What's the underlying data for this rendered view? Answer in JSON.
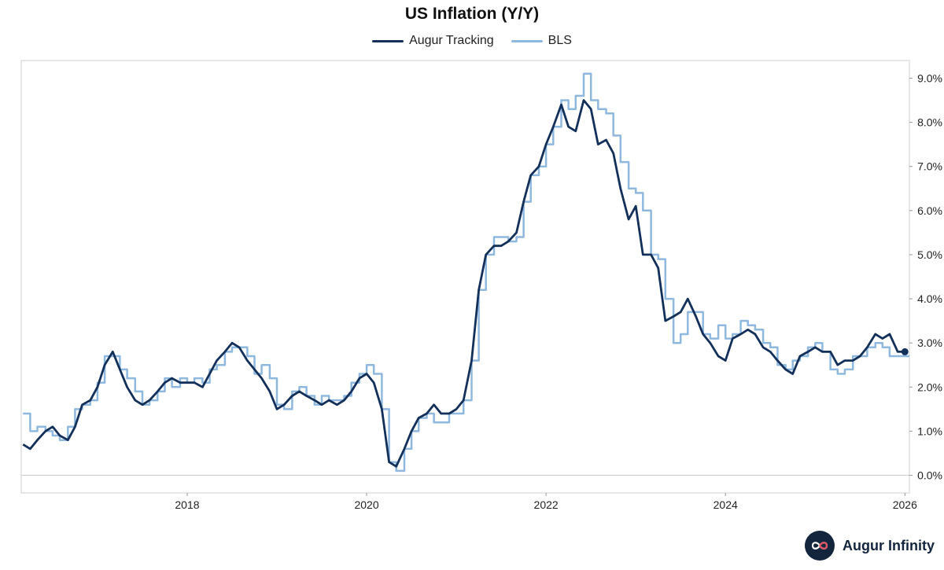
{
  "brand": {
    "name": "Augur Infinity",
    "logo_icon": "infinity-icon",
    "logo_color": "#13253d"
  },
  "chart_data": {
    "type": "line",
    "title": "US Inflation (Y/Y)",
    "xlabel": "",
    "ylabel": "",
    "xlim": [
      2016.15,
      2026.05
    ],
    "ylim": [
      -0.4,
      9.4
    ],
    "x_ticks": [
      2018,
      2020,
      2022,
      2024,
      2026
    ],
    "x_tick_labels": [
      "2018",
      "2020",
      "2022",
      "2024",
      "2026"
    ],
    "y_ticks": [
      0,
      1,
      2,
      3,
      4,
      5,
      6,
      7,
      8,
      9
    ],
    "y_tick_labels": [
      "0.0%",
      "1.0%",
      "2.0%",
      "3.0%",
      "4.0%",
      "5.0%",
      "6.0%",
      "7.0%",
      "8.0%",
      "9.0%"
    ],
    "y_axis_side": "right",
    "zero_line": true,
    "grid": false,
    "legend": "top-center",
    "series": [
      {
        "name": "Augur Tracking",
        "color": "#13305a",
        "style": "line",
        "end_marker": true,
        "x": [
          2016.17,
          2016.25,
          2016.33,
          2016.42,
          2016.5,
          2016.58,
          2016.67,
          2016.75,
          2016.83,
          2016.92,
          2017.0,
          2017.08,
          2017.17,
          2017.25,
          2017.33,
          2017.42,
          2017.5,
          2017.58,
          2017.67,
          2017.75,
          2017.83,
          2017.92,
          2018.0,
          2018.08,
          2018.17,
          2018.25,
          2018.33,
          2018.42,
          2018.5,
          2018.58,
          2018.67,
          2018.75,
          2018.83,
          2018.92,
          2019.0,
          2019.08,
          2019.17,
          2019.25,
          2019.33,
          2019.42,
          2019.5,
          2019.58,
          2019.67,
          2019.75,
          2019.83,
          2019.92,
          2020.0,
          2020.08,
          2020.17,
          2020.25,
          2020.33,
          2020.42,
          2020.5,
          2020.58,
          2020.67,
          2020.75,
          2020.83,
          2020.92,
          2021.0,
          2021.08,
          2021.17,
          2021.25,
          2021.33,
          2021.42,
          2021.5,
          2021.58,
          2021.67,
          2021.75,
          2021.83,
          2021.92,
          2022.0,
          2022.08,
          2022.17,
          2022.25,
          2022.33,
          2022.42,
          2022.5,
          2022.58,
          2022.67,
          2022.75,
          2022.83,
          2022.92,
          2023.0,
          2023.08,
          2023.17,
          2023.25,
          2023.33,
          2023.42,
          2023.5,
          2023.58,
          2023.67,
          2023.75,
          2023.83,
          2023.92,
          2024.0,
          2024.08,
          2024.17,
          2024.25,
          2024.33,
          2024.42,
          2024.5,
          2024.58,
          2024.67,
          2024.75,
          2024.83,
          2024.92,
          2025.0,
          2025.08,
          2025.17,
          2025.25,
          2025.33,
          2025.42,
          2025.5,
          2025.58,
          2025.67,
          2025.75,
          2025.83,
          2025.92,
          2026.0
        ],
        "values": [
          0.7,
          0.6,
          0.8,
          1.0,
          1.1,
          0.9,
          0.8,
          1.1,
          1.6,
          1.7,
          2.0,
          2.5,
          2.8,
          2.4,
          2.0,
          1.7,
          1.6,
          1.7,
          1.9,
          2.1,
          2.2,
          2.1,
          2.1,
          2.1,
          2.0,
          2.3,
          2.6,
          2.8,
          3.0,
          2.9,
          2.6,
          2.4,
          2.2,
          1.9,
          1.5,
          1.6,
          1.8,
          1.9,
          1.8,
          1.7,
          1.6,
          1.7,
          1.6,
          1.7,
          1.9,
          2.2,
          2.3,
          2.1,
          1.5,
          0.3,
          0.2,
          0.6,
          1.0,
          1.3,
          1.4,
          1.6,
          1.4,
          1.4,
          1.5,
          1.7,
          2.6,
          4.2,
          5.0,
          5.2,
          5.2,
          5.3,
          5.5,
          6.2,
          6.8,
          7.0,
          7.5,
          7.9,
          8.4,
          7.9,
          7.8,
          8.5,
          8.3,
          7.5,
          7.6,
          7.3,
          6.5,
          5.8,
          6.1,
          5.0,
          5.0,
          4.7,
          3.5,
          3.6,
          3.7,
          4.0,
          3.6,
          3.2,
          3.0,
          2.7,
          2.6,
          3.1,
          3.2,
          3.3,
          3.2,
          2.9,
          2.8,
          2.6,
          2.4,
          2.3,
          2.7,
          2.8,
          2.9,
          2.8,
          2.8,
          2.5,
          2.6,
          2.6,
          2.7,
          2.9,
          3.2,
          3.1,
          3.2,
          2.8,
          2.8
        ]
      },
      {
        "name": "BLS",
        "color": "#8fb8df",
        "style": "step",
        "x": [
          2016.17,
          2016.25,
          2016.33,
          2016.42,
          2016.5,
          2016.58,
          2016.67,
          2016.75,
          2016.83,
          2016.92,
          2017.0,
          2017.08,
          2017.17,
          2017.25,
          2017.33,
          2017.42,
          2017.5,
          2017.58,
          2017.67,
          2017.75,
          2017.83,
          2017.92,
          2018.0,
          2018.08,
          2018.17,
          2018.25,
          2018.33,
          2018.42,
          2018.5,
          2018.58,
          2018.67,
          2018.75,
          2018.83,
          2018.92,
          2019.0,
          2019.08,
          2019.17,
          2019.25,
          2019.33,
          2019.42,
          2019.5,
          2019.58,
          2019.67,
          2019.75,
          2019.83,
          2019.92,
          2020.0,
          2020.08,
          2020.17,
          2020.25,
          2020.33,
          2020.42,
          2020.5,
          2020.58,
          2020.67,
          2020.75,
          2020.83,
          2020.92,
          2021.0,
          2021.08,
          2021.17,
          2021.25,
          2021.33,
          2021.42,
          2021.5,
          2021.58,
          2021.67,
          2021.75,
          2021.83,
          2021.92,
          2022.0,
          2022.08,
          2022.17,
          2022.25,
          2022.33,
          2022.42,
          2022.5,
          2022.58,
          2022.67,
          2022.75,
          2022.83,
          2022.92,
          2023.0,
          2023.08,
          2023.17,
          2023.25,
          2023.33,
          2023.42,
          2023.5,
          2023.58,
          2023.67,
          2023.75,
          2023.83,
          2023.92,
          2024.0,
          2024.08,
          2024.17,
          2024.25,
          2024.33,
          2024.42,
          2024.5,
          2024.58,
          2024.67,
          2024.75,
          2024.83,
          2024.92,
          2025.0,
          2025.08,
          2025.17,
          2025.25,
          2025.33,
          2025.42,
          2025.5,
          2025.58,
          2025.67,
          2025.75,
          2025.83,
          2025.92,
          2026.0
        ],
        "values": [
          1.4,
          1.0,
          1.1,
          1.0,
          0.9,
          0.8,
          1.1,
          1.5,
          1.6,
          1.7,
          2.1,
          2.7,
          2.7,
          2.4,
          2.2,
          1.9,
          1.6,
          1.7,
          1.9,
          2.2,
          2.0,
          2.2,
          2.1,
          2.2,
          2.1,
          2.4,
          2.5,
          2.8,
          2.9,
          2.9,
          2.7,
          2.3,
          2.5,
          2.2,
          1.6,
          1.5,
          1.9,
          2.0,
          1.8,
          1.6,
          1.8,
          1.7,
          1.7,
          1.8,
          2.1,
          2.3,
          2.5,
          2.3,
          1.5,
          0.3,
          0.1,
          0.6,
          1.0,
          1.3,
          1.4,
          1.2,
          1.2,
          1.4,
          1.4,
          1.7,
          2.6,
          4.2,
          5.0,
          5.4,
          5.4,
          5.3,
          5.4,
          6.2,
          6.8,
          7.0,
          7.5,
          7.9,
          8.5,
          8.3,
          8.6,
          9.1,
          8.5,
          8.3,
          8.2,
          7.7,
          7.1,
          6.5,
          6.4,
          6.0,
          5.0,
          4.9,
          4.0,
          3.0,
          3.2,
          3.7,
          3.7,
          3.2,
          3.1,
          3.4,
          3.1,
          3.2,
          3.5,
          3.4,
          3.3,
          3.0,
          2.9,
          2.5,
          2.4,
          2.6,
          2.7,
          2.9,
          3.0,
          2.8,
          2.4,
          2.3,
          2.4,
          2.7,
          2.7,
          2.9,
          3.0,
          2.9,
          2.7,
          2.7,
          2.7
        ]
      }
    ]
  }
}
